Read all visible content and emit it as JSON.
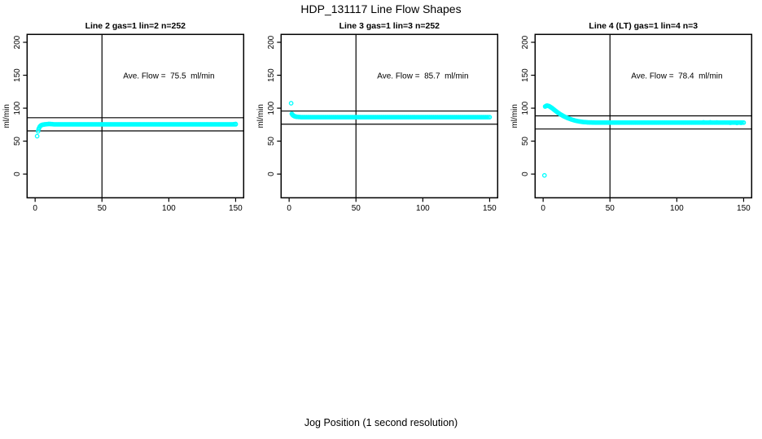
{
  "page": {
    "title": "HDP_131117  Line Flow Shapes",
    "x_axis_label": "Jog Position (1 second resolution)"
  },
  "colors": {
    "marker": "#00ffff",
    "axis": "#000000",
    "background": "#ffffff"
  },
  "chart_data": [
    {
      "type": "scatter",
      "title": "Line 2 gas=1 lin=2 n=252",
      "annotation": "Ave. Flow =  75.5  ml/min",
      "ave_flow_ml_min": 75.5,
      "n": 252,
      "ylabel": "ml/min",
      "x_ticks": [
        0,
        50,
        100,
        150
      ],
      "y_ticks": [
        0,
        50,
        100,
        150,
        200
      ],
      "xlim": [
        -6,
        156
      ],
      "ylim": [
        -36,
        212
      ],
      "grid": false,
      "ref_lines": {
        "h": [
          85.5,
          65.5
        ],
        "v": 50
      },
      "series": {
        "outliers": [
          [
            1.5,
            57.5
          ]
        ],
        "points": [
          [
            2.2,
            65
          ],
          [
            2.6,
            68
          ],
          [
            3,
            70
          ],
          [
            3.4,
            71.7
          ],
          [
            3.8,
            72.8
          ],
          [
            4.2,
            73.6
          ],
          [
            4.6,
            74.1
          ],
          [
            5,
            74.5
          ],
          [
            5.5,
            74.8
          ],
          [
            6,
            75
          ],
          [
            6.5,
            75.2
          ],
          [
            7,
            75.4
          ],
          [
            8,
            75.6
          ],
          [
            9,
            75.8
          ],
          [
            10,
            76
          ],
          [
            11,
            76
          ],
          [
            12,
            75.9
          ],
          [
            13,
            75.7
          ],
          [
            149,
            75.8
          ],
          [
            150,
            76
          ]
        ],
        "plateau": {
          "from": 14,
          "to": 150,
          "step": 1,
          "y": 75.5
        }
      }
    },
    {
      "type": "scatter",
      "title": "Line 3 gas=1 lin=3 n=252",
      "annotation": "Ave. Flow =  85.7  ml/min",
      "ave_flow_ml_min": 85.7,
      "n": 252,
      "ylabel": "ml/min",
      "x_ticks": [
        0,
        50,
        100,
        150
      ],
      "y_ticks": [
        0,
        50,
        100,
        150,
        200
      ],
      "xlim": [
        -6,
        156
      ],
      "ylim": [
        -36,
        212
      ],
      "grid": false,
      "ref_lines": {
        "h": [
          95.7,
          75.7
        ],
        "v": 50
      },
      "series": {
        "outliers": [
          [
            1.5,
            107.5
          ]
        ],
        "points": [
          [
            2,
            91.5
          ],
          [
            2.4,
            90.2
          ],
          [
            2.8,
            89.3
          ],
          [
            3.2,
            88.7
          ],
          [
            3.6,
            88.2
          ],
          [
            4,
            87.8
          ],
          [
            4.5,
            87.5
          ],
          [
            5,
            87.2
          ],
          [
            5.5,
            87
          ],
          [
            6,
            86.9
          ],
          [
            7,
            86.7
          ],
          [
            8,
            86.6
          ]
        ],
        "plateau": {
          "from": 9,
          "to": 150,
          "step": 1,
          "y": 86.4
        }
      }
    },
    {
      "type": "scatter",
      "title": "Line 4 (LT) gas=1 lin=4 n=3",
      "annotation": "Ave. Flow =  78.4  ml/min",
      "ave_flow_ml_min": 78.4,
      "n": 3,
      "ylabel": "ml/min",
      "x_ticks": [
        0,
        50,
        100,
        150
      ],
      "y_ticks": [
        0,
        50,
        100,
        150,
        200
      ],
      "xlim": [
        -6,
        156
      ],
      "ylim": [
        -36,
        212
      ],
      "grid": false,
      "ref_lines": {
        "h": [
          88.4,
          68.4
        ],
        "v": 50
      },
      "series": {
        "outliers": [
          [
            1,
            -2
          ]
        ],
        "points": [
          [
            1.5,
            102.5
          ],
          [
            2,
            103.2
          ],
          [
            2.5,
            103.6
          ],
          [
            3,
            103.8
          ],
          [
            3.5,
            103.7
          ],
          [
            4,
            103.4
          ],
          [
            4.5,
            103
          ],
          [
            5,
            102.4
          ],
          [
            5.5,
            101.8
          ],
          [
            6,
            101.1
          ],
          [
            6.5,
            100.4
          ],
          [
            7,
            99.6
          ],
          [
            7.5,
            98.8
          ],
          [
            8,
            98
          ],
          [
            8.5,
            97.2
          ],
          [
            9,
            96.4
          ],
          [
            9.5,
            95.6
          ],
          [
            10,
            94.8
          ],
          [
            10.5,
            94.1
          ],
          [
            11,
            93.3
          ],
          [
            11.5,
            92.6
          ],
          [
            12,
            91.9
          ],
          [
            12.5,
            91.2
          ],
          [
            13,
            90.6
          ],
          [
            13.5,
            90
          ],
          [
            14,
            89.4
          ],
          [
            14.5,
            88.8
          ],
          [
            15,
            88.2
          ],
          [
            15.5,
            87.7
          ],
          [
            16,
            87.2
          ],
          [
            17,
            86.2
          ],
          [
            18,
            85.3
          ],
          [
            19,
            84.5
          ],
          [
            20,
            83.7
          ],
          [
            21,
            83
          ],
          [
            22,
            82.3
          ],
          [
            23,
            81.7
          ],
          [
            24,
            81.2
          ],
          [
            25,
            80.7
          ],
          [
            26,
            80.3
          ],
          [
            27,
            79.9
          ],
          [
            28,
            79.6
          ],
          [
            29,
            79.3
          ],
          [
            30,
            79
          ],
          [
            31,
            78.8
          ],
          [
            32,
            78.7
          ],
          [
            33,
            78.5
          ],
          [
            34,
            78.4
          ],
          [
            35,
            78.3
          ],
          [
            36,
            78.3
          ],
          [
            37,
            78.2
          ],
          [
            38,
            78.2
          ],
          [
            39,
            78.1
          ],
          [
            120,
            78.5
          ],
          [
            125,
            78.6
          ],
          [
            130,
            78.4
          ],
          [
            140,
            77.8
          ],
          [
            145,
            77.6
          ],
          [
            148,
            77.8
          ]
        ],
        "plateau": {
          "from": 40,
          "to": 150,
          "step": 1,
          "y": 78.1
        }
      }
    }
  ]
}
